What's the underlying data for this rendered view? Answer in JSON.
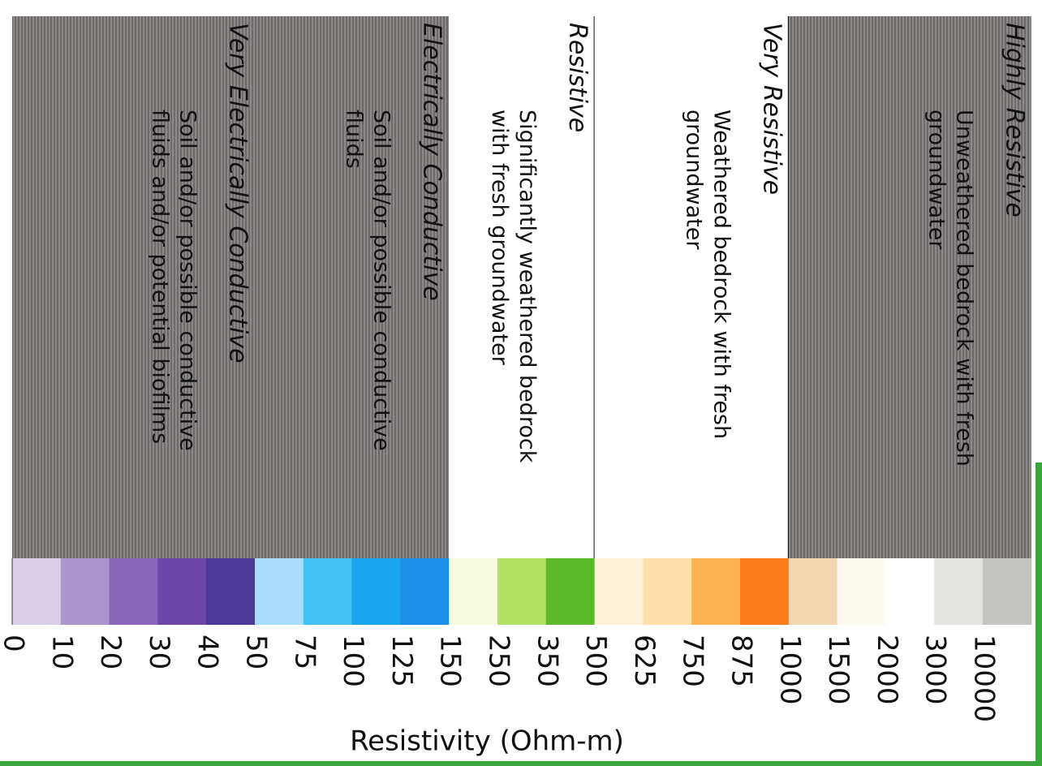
{
  "scale": {
    "axis_label": "Resistivity (Ohm-m)",
    "ticks": [
      "0",
      "10",
      "20",
      "30",
      "40",
      "50",
      "75",
      "100",
      "125",
      "150",
      "250",
      "350",
      "500",
      "625",
      "750",
      "875",
      "1000",
      "1500",
      "2000",
      "3000",
      "10000"
    ],
    "swatches": [
      "#d9cfe9",
      "#a996cd",
      "#8a65b9",
      "#6d46a8",
      "#4b3898",
      "#a8dcf8",
      "#44c1f5",
      "#1ba5ee",
      "#1a8fe6",
      "#f6fbdd",
      "#b1e163",
      "#5bb92a",
      "#fdf3d9",
      "#fde0a9",
      "#fdb152",
      "#f97b1c",
      "#f4d7b2",
      "#fdfaf1",
      "#ffffff",
      "#e3e3e1",
      "#c4c4c2"
    ],
    "bands": [
      {
        "heading": "Very Electrically Conductive",
        "description": [
          "Soil and/or possible conductive",
          "fluids and/or potential biofilms"
        ],
        "shaded": true
      },
      {
        "heading": "Electrically Conductive",
        "description": [
          "Soil and/or possible conductive",
          "fluids"
        ],
        "shaded": true
      },
      {
        "heading": "Resistive",
        "description": [
          "Significantly weathered bedrock",
          "with fresh groundwater"
        ],
        "shaded": false
      },
      {
        "heading": "Very Resistive",
        "description": [
          "Weathered bedrock with fresh",
          "groundwater"
        ],
        "shaded": false
      },
      {
        "heading": "Highly Resistive",
        "description": [
          "Unweathered bedrock with fresh",
          "groundwater"
        ],
        "shaded": true
      }
    ]
  }
}
